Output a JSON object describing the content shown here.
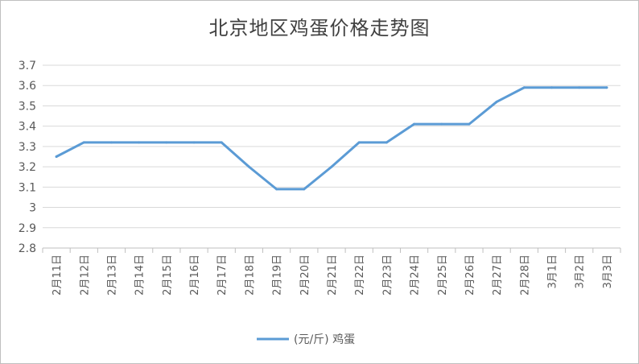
{
  "chart_data": {
    "type": "line",
    "title": "北京地区鸡蛋价格走势图",
    "xlabel": "",
    "ylabel": "",
    "ylim": [
      2.8,
      3.7
    ],
    "yticks": [
      "2.8",
      "2.9",
      "3",
      "3.1",
      "3.2",
      "3.3",
      "3.4",
      "3.5",
      "3.6",
      "3.7"
    ],
    "categories": [
      "2月11日",
      "2月12日",
      "2月13日",
      "2月14日",
      "2月15日",
      "2月16日",
      "2月17日",
      "2月18日",
      "2月19日",
      "2月20日",
      "2月21日",
      "2月22日",
      "2月23日",
      "2月24日",
      "2月25日",
      "2月26日",
      "2月27日",
      "2月28日",
      "3月1日",
      "3月2日",
      "3月3日"
    ],
    "series": [
      {
        "name": "(元/斤) 鸡蛋",
        "color": "#5b9bd5",
        "values": [
          3.25,
          3.32,
          3.32,
          3.32,
          3.32,
          3.32,
          3.32,
          3.2,
          3.09,
          3.09,
          3.2,
          3.32,
          3.32,
          3.41,
          3.41,
          3.41,
          3.52,
          3.59,
          3.59,
          3.59,
          3.59
        ]
      }
    ],
    "grid": true,
    "legend": "bottom"
  }
}
